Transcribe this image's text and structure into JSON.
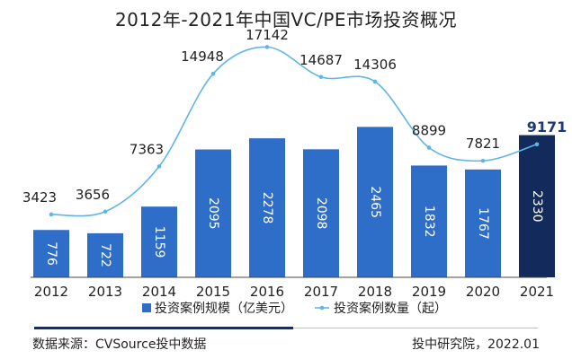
{
  "title": "2012年-2021年中国VC/PE市场投资概况",
  "footer": {
    "source": "数据来源：CVSource投中数据",
    "credit": "投中研究院，2022.01"
  },
  "colors": {
    "bar": "#2e6ec9",
    "bar_highlight": "#122a5c",
    "line": "#5fb6e6",
    "text": "#222222",
    "highlight_text": "#1a3a7a"
  },
  "chart_data": {
    "type": "bar",
    "categories": [
      "2012",
      "2013",
      "2014",
      "2015",
      "2016",
      "2017",
      "2018",
      "2019",
      "2020",
      "2021"
    ],
    "series": [
      {
        "name": "投资案例规模（亿美元）",
        "type": "bar",
        "values": [
          776,
          722,
          1159,
          2095,
          2278,
          2098,
          2465,
          1832,
          1767,
          2330
        ]
      },
      {
        "name": "投资案例数量（起）",
        "type": "line",
        "values": [
          3423,
          3656,
          7363,
          14948,
          17142,
          14687,
          14306,
          8899,
          7821,
          9171
        ]
      }
    ],
    "highlight_category": "2021",
    "legend_position": "bottom",
    "grid": false
  }
}
